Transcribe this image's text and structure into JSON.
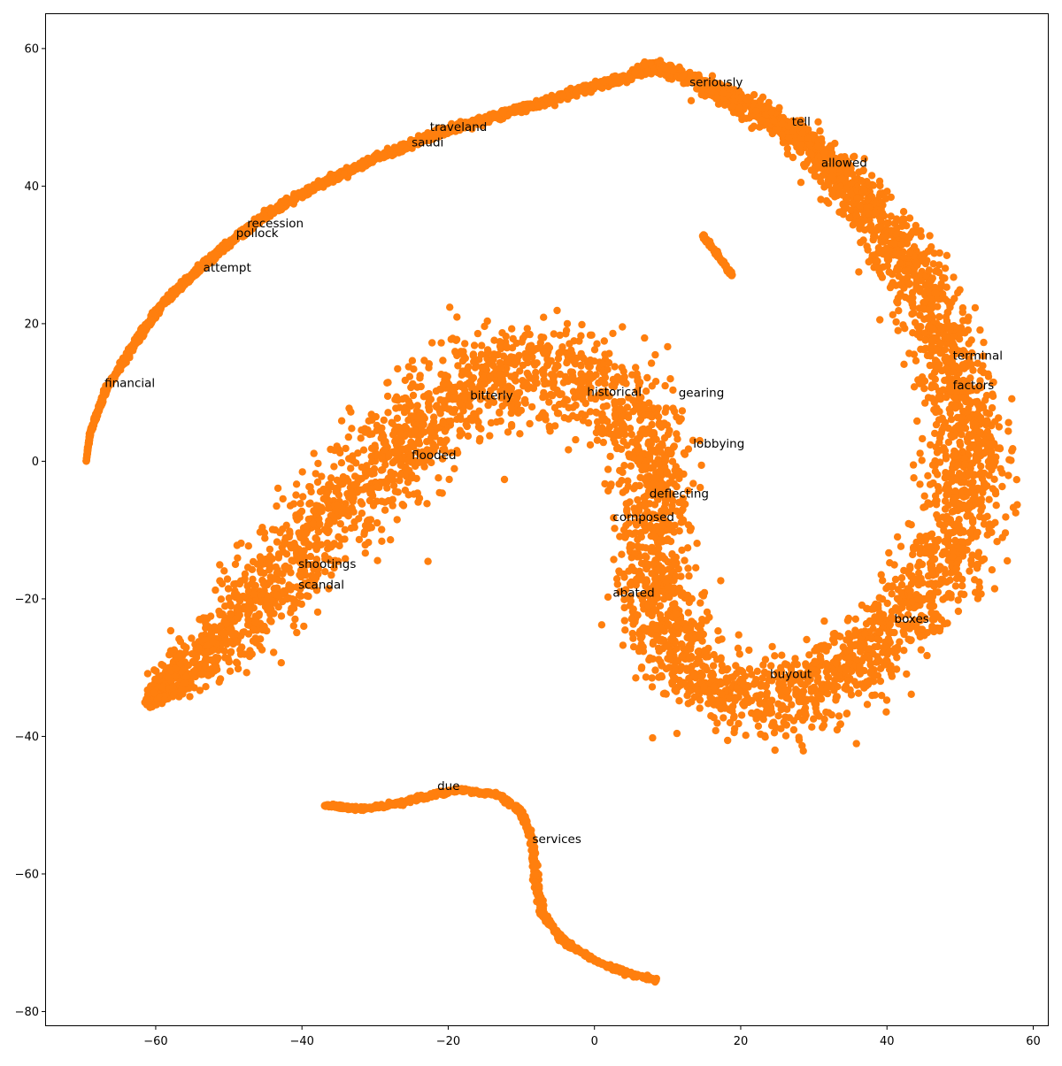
{
  "chart_data": {
    "type": "scatter",
    "title": "",
    "xlabel": "",
    "ylabel": "",
    "xlim": [
      -75,
      62
    ],
    "ylim": [
      -82,
      65
    ],
    "grid": false,
    "legend": "none",
    "marker_color": "#ff7f0e",
    "x_ticks": [
      -60,
      -40,
      -20,
      0,
      20,
      40,
      60
    ],
    "y_ticks": [
      -80,
      -60,
      -40,
      -20,
      0,
      20,
      40,
      60
    ],
    "x_tick_labels": [
      "−60",
      "−40",
      "−20",
      "0",
      "20",
      "40",
      "60"
    ],
    "y_tick_labels": [
      "−80",
      "−60",
      "−40",
      "−20",
      "0",
      "20",
      "40",
      "60"
    ],
    "annotations": [
      {
        "text": "seriously",
        "x": 13.0,
        "y": 54.5
      },
      {
        "text": "tell",
        "x": 27.0,
        "y": 48.8
      },
      {
        "text": "allowed",
        "x": 31.0,
        "y": 42.8
      },
      {
        "text": "traveland",
        "x": -22.5,
        "y": 48.0
      },
      {
        "text": "saudi",
        "x": -25.0,
        "y": 45.8
      },
      {
        "text": "recession",
        "x": -47.5,
        "y": 34.0
      },
      {
        "text": "pollock",
        "x": -49.0,
        "y": 32.6
      },
      {
        "text": "attempt",
        "x": -53.5,
        "y": 27.6
      },
      {
        "text": "financial",
        "x": -67.0,
        "y": 10.8
      },
      {
        "text": "terminal",
        "x": 49.0,
        "y": 14.8
      },
      {
        "text": "factors",
        "x": 49.0,
        "y": 10.5
      },
      {
        "text": "historical",
        "x": -1.0,
        "y": 9.5
      },
      {
        "text": "gearing",
        "x": 11.5,
        "y": 9.4
      },
      {
        "text": "bitterly",
        "x": -17.0,
        "y": 9.0
      },
      {
        "text": "lobbying",
        "x": 13.5,
        "y": 2.0
      },
      {
        "text": "flooded",
        "x": -25.0,
        "y": 0.3
      },
      {
        "text": "deflecting",
        "x": 7.5,
        "y": -5.3
      },
      {
        "text": "composed",
        "x": 2.5,
        "y": -8.7
      },
      {
        "text": "shootings",
        "x": -40.5,
        "y": -15.5
      },
      {
        "text": "scandal",
        "x": -40.5,
        "y": -18.5
      },
      {
        "text": "abated",
        "x": 2.5,
        "y": -19.7
      },
      {
        "text": "boxes",
        "x": 41.0,
        "y": -23.5
      },
      {
        "text": "buyout",
        "x": 24.0,
        "y": -31.5
      },
      {
        "text": "due",
        "x": -21.5,
        "y": -47.8
      },
      {
        "text": "services",
        "x": -8.5,
        "y": -55.5
      }
    ],
    "clusters": [
      {
        "name": "",
        "kind": "curve",
        "path": [
          [
            -69.5,
            0
          ],
          [
            -69,
            4
          ],
          [
            -67,
            10
          ],
          [
            -63,
            17
          ],
          [
            -59,
            23
          ],
          [
            -54,
            28
          ],
          [
            -49,
            32.5
          ],
          [
            -44,
            36.5
          ],
          [
            -38,
            40
          ],
          [
            -30,
            44
          ],
          [
            -22,
            47.5
          ],
          [
            -14,
            50
          ],
          [
            -6,
            52.5
          ],
          [
            0,
            54.5
          ],
          [
            5,
            56
          ],
          [
            8,
            57.5
          ],
          [
            12,
            56
          ],
          [
            17,
            54
          ],
          [
            22,
            51
          ],
          [
            27,
            48
          ],
          [
            31,
            44
          ],
          [
            35,
            40
          ],
          [
            39,
            34.5
          ],
          [
            43,
            28
          ],
          [
            46,
            22
          ],
          [
            48,
            16
          ],
          [
            50,
            9
          ],
          [
            51,
            3
          ],
          [
            51.5,
            -3
          ],
          [
            50.5,
            -9
          ],
          [
            48.5,
            -14
          ],
          [
            46,
            -18
          ],
          [
            43,
            -21
          ],
          [
            40,
            -25
          ],
          [
            36,
            -29
          ],
          [
            32,
            -32
          ],
          [
            27,
            -34.5
          ],
          [
            22,
            -35.5
          ],
          [
            17,
            -34
          ],
          [
            13,
            -31
          ],
          [
            10,
            -26
          ],
          [
            8.5,
            -21
          ],
          [
            7.8,
            -15
          ],
          [
            8,
            -9
          ],
          [
            8.5,
            -3
          ],
          [
            7.5,
            3
          ],
          [
            4.5,
            8
          ],
          [
            0,
            11.5
          ],
          [
            -5,
            13.5
          ],
          [
            -10,
            14
          ],
          [
            -15,
            12.5
          ],
          [
            -20,
            9
          ],
          [
            -25,
            4
          ],
          [
            -30,
            -1
          ],
          [
            -35,
            -7
          ],
          [
            -40,
            -13
          ],
          [
            -45,
            -19
          ],
          [
            -50,
            -25
          ],
          [
            -55,
            -29.5
          ],
          [
            -58,
            -32
          ],
          [
            -61,
            -35.5
          ]
        ],
        "spread": [
          0,
          0.1,
          0.2,
          0.3,
          0.35,
          0.4,
          0.4,
          0.45,
          0.45,
          0.45,
          0.5,
          0.5,
          0.5,
          0.5,
          0.6,
          0.8,
          1.0,
          1.2,
          1.5,
          1.8,
          2.2,
          2.8,
          3.3,
          3.8,
          4.2,
          4.5,
          4.8,
          5,
          5,
          5,
          5,
          5,
          5,
          5,
          5,
          5,
          5,
          5,
          5,
          5,
          5,
          5,
          5,
          5,
          5,
          5.5,
          6,
          6.5,
          6.5,
          6.5,
          6.5,
          6.5,
          6.5,
          6.5,
          6,
          5.5,
          5,
          4.5,
          3.5,
          2.5,
          1
        ],
        "count": 7200
      },
      {
        "name": "",
        "kind": "curve",
        "path": [
          [
            -37,
            -50
          ],
          [
            -32,
            -50.5
          ],
          [
            -27,
            -49.8
          ],
          [
            -22,
            -48.5
          ],
          [
            -18,
            -47.8
          ],
          [
            -13,
            -48.5
          ],
          [
            -10,
            -51
          ],
          [
            -8.5,
            -55
          ],
          [
            -8,
            -61
          ],
          [
            -7,
            -66
          ],
          [
            -4,
            -70
          ],
          [
            0,
            -72.5
          ],
          [
            4,
            -74.2
          ],
          [
            8.5,
            -75.5
          ]
        ],
        "spread": [
          0.2,
          0.3,
          0.3,
          0.3,
          0.3,
          0.3,
          0.3,
          0.3,
          0.3,
          0.3,
          0.3,
          0.3,
          0.3,
          0.25
        ],
        "count": 900
      },
      {
        "name": "",
        "kind": "curve",
        "path": [
          [
            14.8,
            32.8
          ],
          [
            16.5,
            30.5
          ],
          [
            18.8,
            27
          ]
        ],
        "spread": [
          0.2,
          0.25,
          0.2
        ],
        "count": 90
      }
    ]
  }
}
